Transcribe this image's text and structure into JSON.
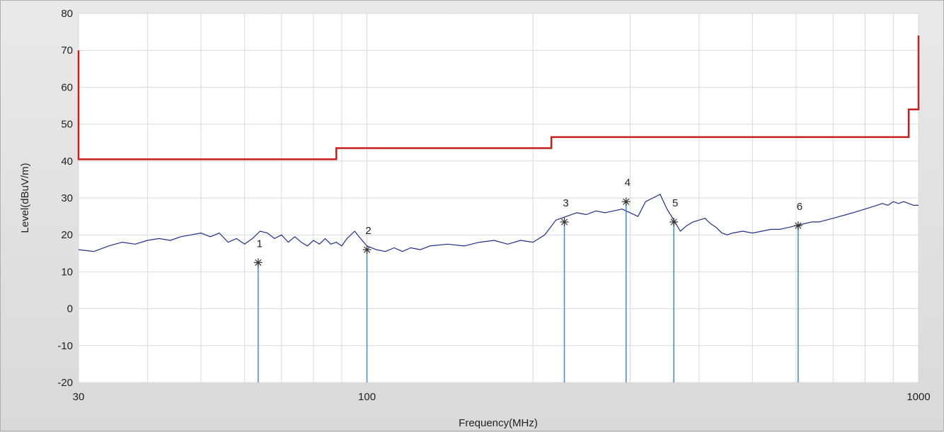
{
  "chart_data": {
    "type": "line",
    "xlabel": "Frequency(MHz)",
    "ylabel": "Level(dBuV/m)",
    "x_scale": "log",
    "xlim": [
      30,
      1000
    ],
    "ylim": [
      -20,
      80
    ],
    "x_ticks": [
      30,
      100,
      1000
    ],
    "x_minor_ticks": [
      40,
      50,
      60,
      70,
      80,
      90,
      200,
      300,
      400,
      500,
      600,
      700,
      800,
      900
    ],
    "y_ticks": [
      -20,
      -10,
      0,
      10,
      20,
      30,
      40,
      50,
      60,
      70,
      80
    ],
    "x_tick_labels": [
      "30",
      "100",
      "1000"
    ],
    "y_tick_labels": [
      "-20",
      "-10",
      "0",
      "10",
      "20",
      "30",
      "40",
      "50",
      "60",
      "70",
      "80"
    ],
    "grid": true,
    "colors": {
      "limit": "#c81e1e",
      "trace": "#1f2f8c",
      "marker": "#3a8fd0",
      "grid": "#d9d9d9"
    },
    "series": [
      {
        "role": "limit",
        "x": [
          30,
          30,
          88,
          88,
          216,
          216,
          960,
          960,
          1000,
          1000
        ],
        "y": [
          70,
          40.5,
          40.5,
          43.5,
          43.5,
          46.5,
          46.5,
          54,
          54,
          74
        ]
      },
      {
        "role": "trace",
        "x": [
          30,
          32,
          34,
          36,
          38,
          40,
          42,
          44,
          46,
          48,
          50,
          52,
          54,
          56,
          58,
          60,
          62,
          64,
          66,
          68,
          70,
          72,
          74,
          76,
          78,
          80,
          82,
          84,
          86,
          88,
          90,
          92,
          95,
          98,
          100,
          104,
          108,
          112,
          116,
          120,
          125,
          130,
          140,
          150,
          160,
          170,
          180,
          190,
          200,
          205,
          210,
          215,
          220,
          230,
          240,
          250,
          260,
          270,
          280,
          290,
          300,
          310,
          320,
          330,
          340,
          350,
          360,
          370,
          380,
          390,
          400,
          410,
          420,
          430,
          440,
          450,
          460,
          480,
          500,
          520,
          540,
          560,
          580,
          600,
          620,
          640,
          660,
          680,
          700,
          720,
          740,
          760,
          780,
          800,
          820,
          840,
          860,
          880,
          900,
          920,
          940,
          960,
          980,
          1000
        ],
        "y": [
          16,
          15.5,
          17,
          18,
          17.5,
          18.5,
          19,
          18.5,
          19.5,
          20,
          20.5,
          19.5,
          20.5,
          18,
          19,
          17.5,
          19,
          21,
          20.5,
          19,
          20,
          18,
          19.5,
          18,
          17,
          18.5,
          17.5,
          19,
          17.5,
          18,
          17,
          19,
          21,
          18.5,
          17,
          16,
          15.5,
          16.5,
          15.5,
          16.5,
          16,
          17,
          17.5,
          17,
          18,
          18.5,
          17.5,
          18.5,
          18,
          19,
          20,
          22,
          24,
          25,
          26,
          25.5,
          26.5,
          26,
          26.5,
          27,
          26,
          25,
          29,
          30,
          31,
          27,
          24,
          21,
          22.5,
          23.5,
          24,
          24.5,
          23,
          22,
          20.5,
          20,
          20.5,
          21,
          20.5,
          21,
          21.5,
          21.5,
          22,
          22.5,
          23,
          23.5,
          23.5,
          24,
          24.5,
          25,
          25.5,
          26,
          26.5,
          27,
          27.5,
          28,
          28.5,
          28,
          29,
          28.5,
          29,
          28.5,
          28,
          28
        ]
      }
    ],
    "markers": [
      {
        "label": "1",
        "x": 63.5,
        "y": 12.5
      },
      {
        "label": "2",
        "x": 100,
        "y": 16
      },
      {
        "label": "3",
        "x": 228,
        "y": 23.5
      },
      {
        "label": "4",
        "x": 295,
        "y": 29
      },
      {
        "label": "5",
        "x": 360,
        "y": 23.5
      },
      {
        "label": "6",
        "x": 605,
        "y": 22.5
      }
    ]
  }
}
